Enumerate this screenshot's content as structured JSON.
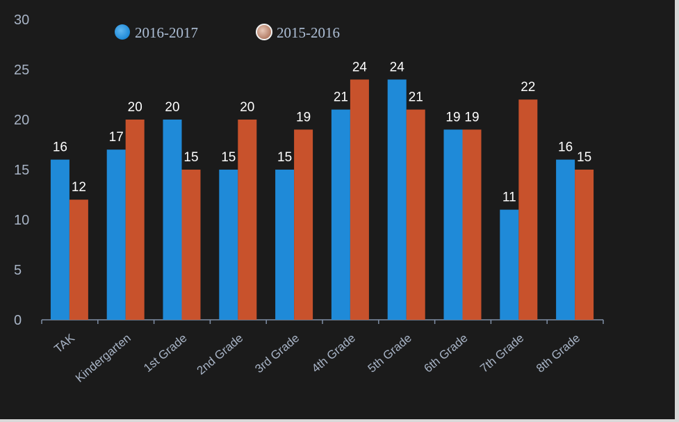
{
  "chart_data": {
    "type": "bar",
    "title": "",
    "xlabel": "",
    "ylabel": "",
    "ylim": [
      0,
      30
    ],
    "yticks": [
      0,
      5,
      10,
      15,
      20,
      25,
      30
    ],
    "grid": false,
    "legend_position": "top-left",
    "categories": [
      "TAK",
      "Kindergarten",
      "1st Grade",
      "2nd Grade",
      "3rd Grade",
      "4th Grade",
      "5th Grade",
      "6th Grade",
      "7th Grade",
      "8th Grade"
    ],
    "series": [
      {
        "name": "2016-2017",
        "color": "#1f8ad8",
        "values": [
          16,
          17,
          20,
          15,
          15,
          21,
          24,
          19,
          11,
          16
        ]
      },
      {
        "name": "2015-2016",
        "color": "#c8522c",
        "values": [
          12,
          20,
          15,
          20,
          19,
          24,
          21,
          19,
          22,
          15
        ]
      }
    ]
  }
}
